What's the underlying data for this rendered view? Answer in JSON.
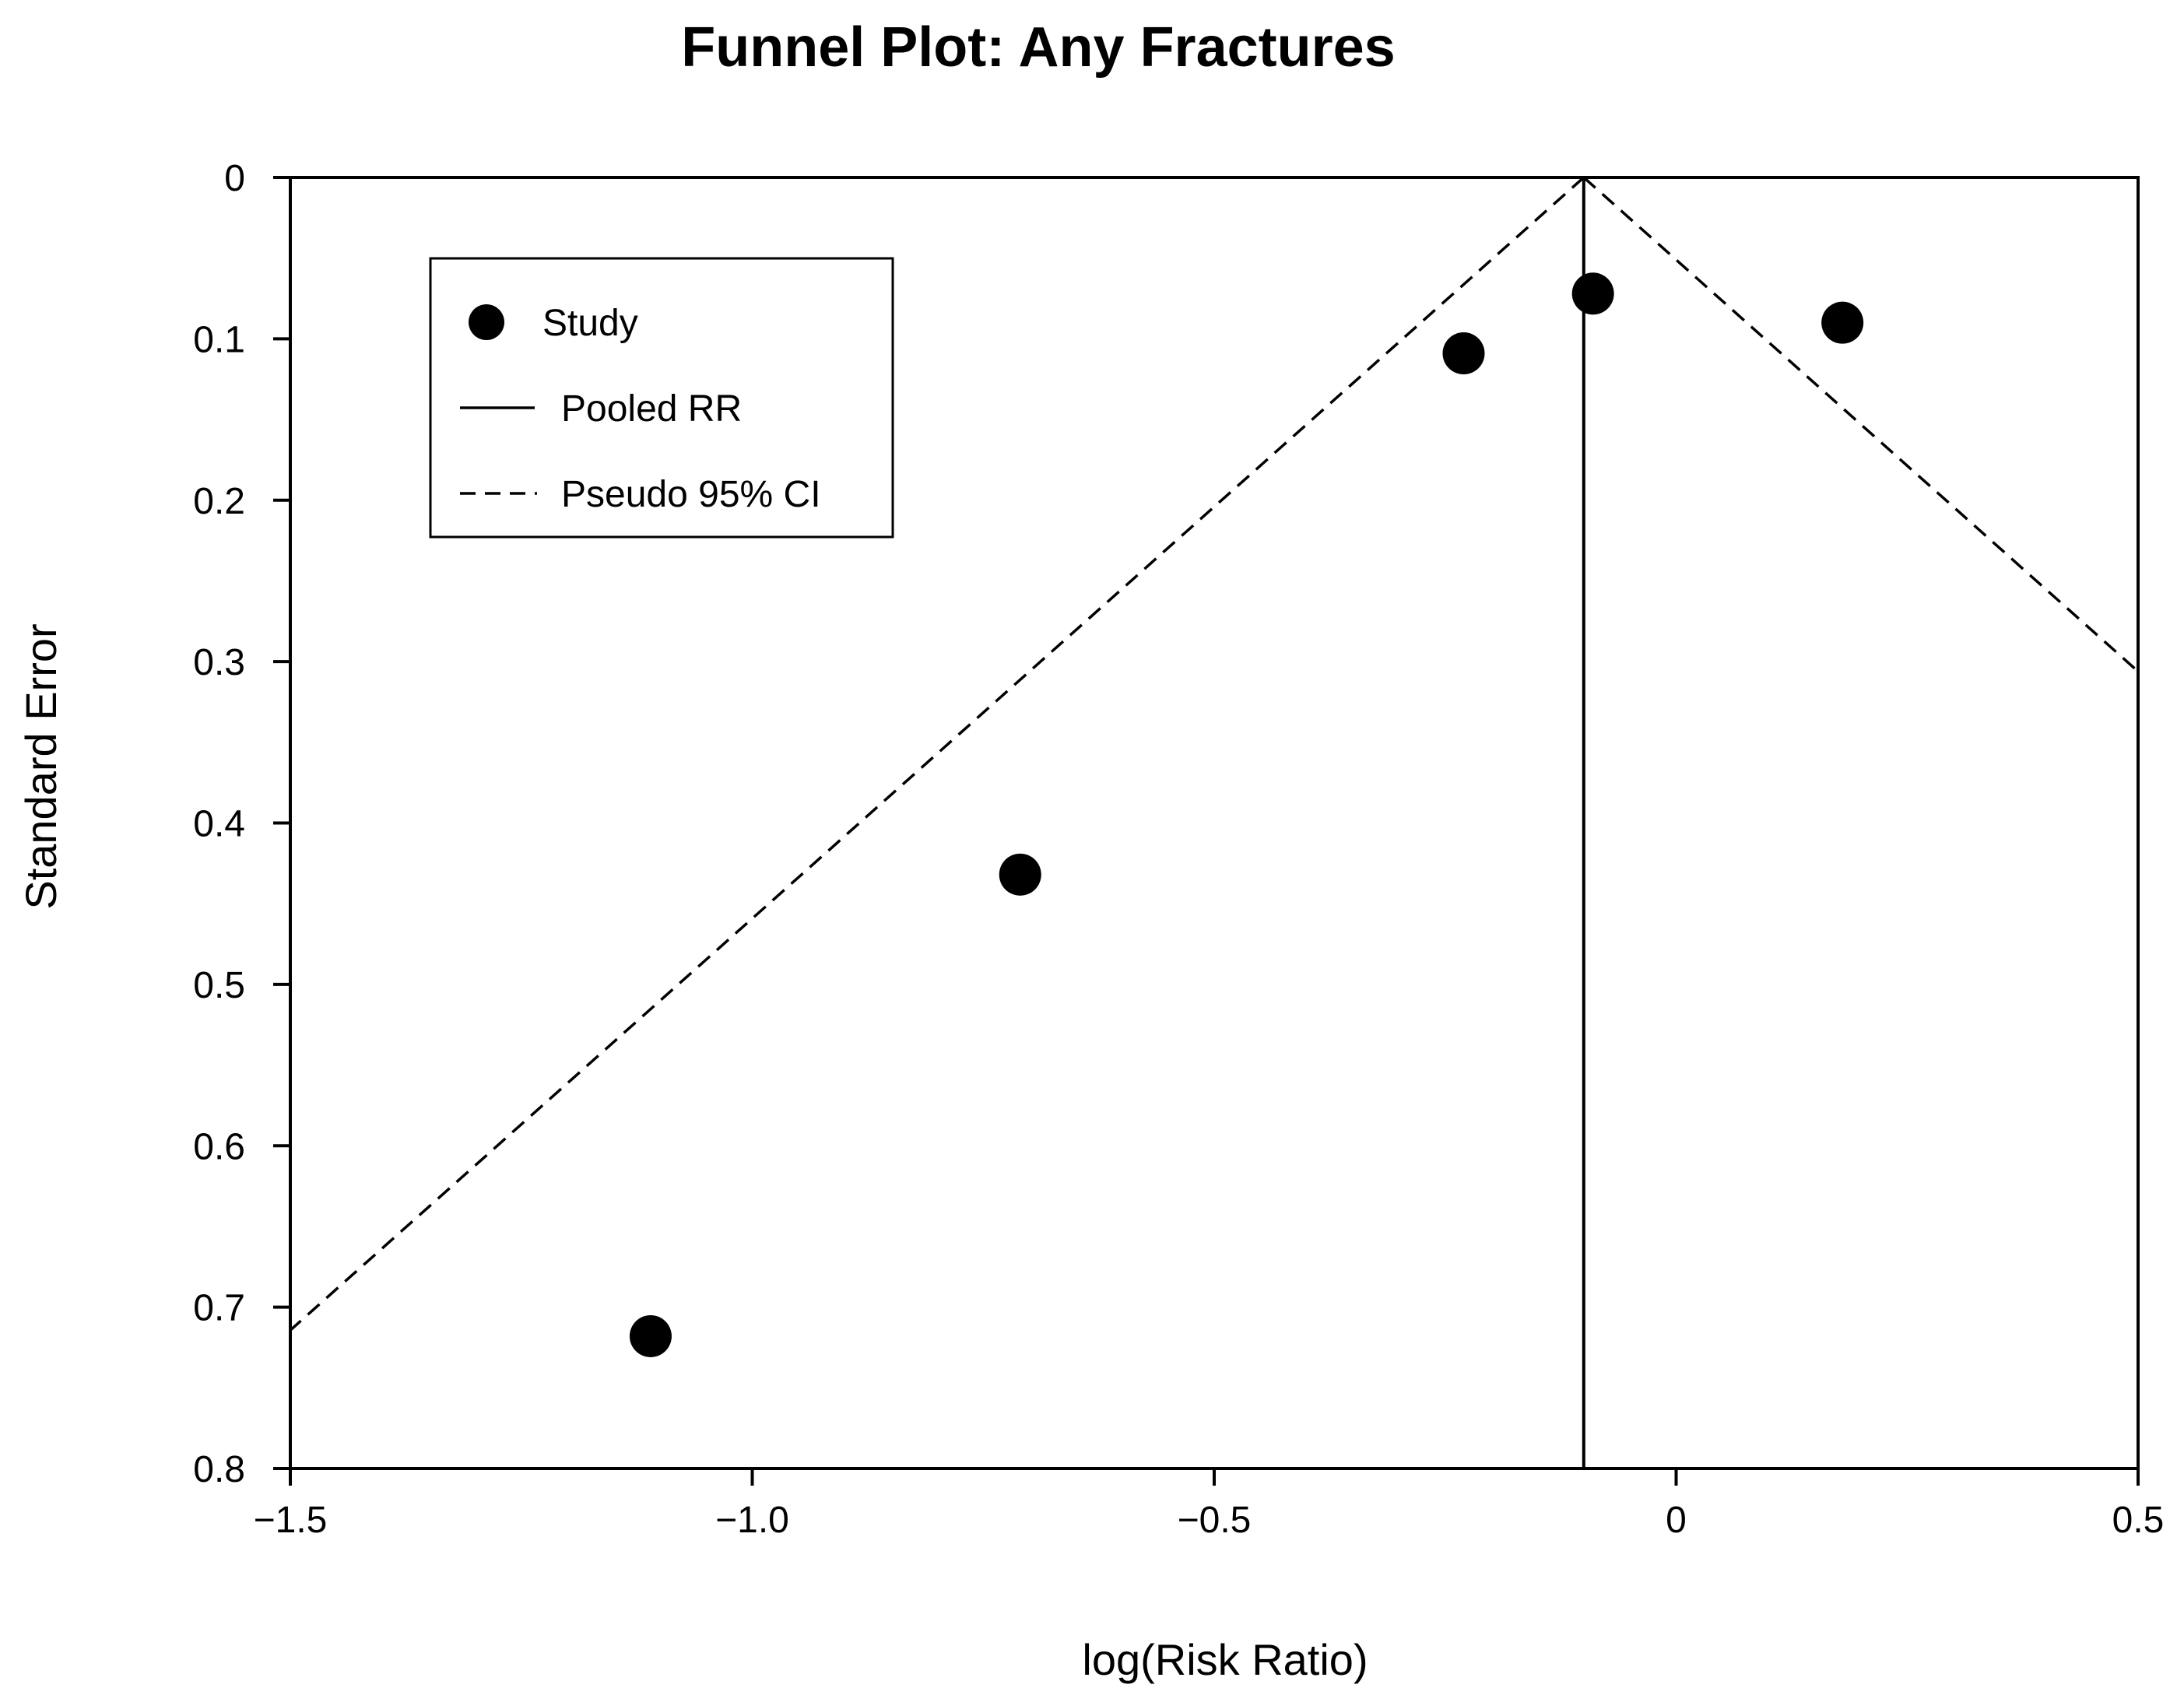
{
  "chart_data": {
    "type": "scatter",
    "title": "Funnel Plot: Any Fractures",
    "xlabel": "log(Risk Ratio)",
    "ylabel": "Standard Error",
    "xlim": [
      -1.5,
      0.5
    ],
    "ylim": [
      0,
      0.8
    ],
    "y_inverted": true,
    "x_ticks": [
      -1.5,
      -1.0,
      -0.5,
      0,
      0.5
    ],
    "x_tick_labels": [
      "−1.5",
      "−1.0",
      "−0.5",
      "0",
      "0.5"
    ],
    "y_ticks": [
      0,
      0.1,
      0.2,
      0.3,
      0.4,
      0.5,
      0.6,
      0.7,
      0.8
    ],
    "y_tick_labels": [
      "0",
      "0.1",
      "0.2",
      "0.3",
      "0.4",
      "0.5",
      "0.6",
      "0.7",
      "0.8"
    ],
    "grid": false,
    "legend_position": "top-left",
    "legend": [
      {
        "label": "Study",
        "style": "marker"
      },
      {
        "label": "Pooled RR",
        "style": "solid"
      },
      {
        "label": "Pseudo 95% CI",
        "style": "dashed"
      }
    ],
    "series": [
      {
        "name": "Study",
        "points": [
          {
            "x": -0.09,
            "y": 0.072
          },
          {
            "x": 0.18,
            "y": 0.09
          },
          {
            "x": -0.23,
            "y": 0.109
          },
          {
            "x": -0.71,
            "y": 0.432
          },
          {
            "x": -1.11,
            "y": 0.718
          }
        ]
      }
    ],
    "pooled_rr": -0.1,
    "pseudo_ci_slope": 1.96,
    "colors": {
      "marker": "#000000",
      "lines": "#000000"
    }
  }
}
